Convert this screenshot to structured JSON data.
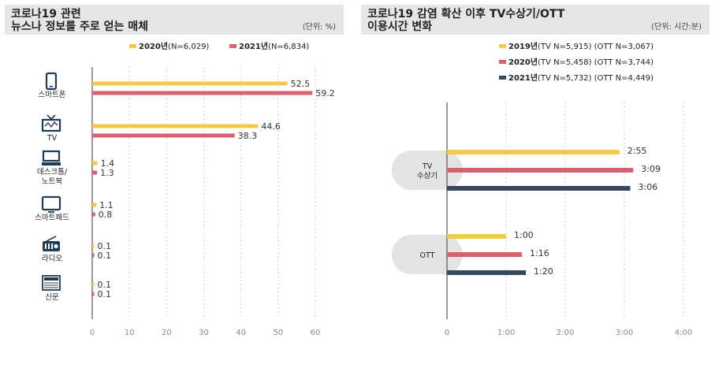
{
  "chart_data": [
    {
      "type": "bar",
      "title": "코로나19 관련\n뉴스나 정보를 주로 얻는 매체",
      "title_lines": [
        "코로나19 관련",
        "뉴스나 정보를 주로 얻는 매체"
      ],
      "unit": "(단위: %)",
      "categories": [
        "스마트폰",
        "TV",
        "데스크톱/노트북",
        "스마트패드",
        "라디오",
        "신문"
      ],
      "category_lines": [
        [
          "스마트폰"
        ],
        [
          "TV"
        ],
        [
          "데스크톱/",
          "노트북"
        ],
        [
          "스마트패드"
        ],
        [
          "라디오"
        ],
        [
          "신문"
        ]
      ],
      "series": [
        {
          "name": "2020년",
          "note": "(N=6,029)",
          "color": "#f2c94c",
          "values": [
            52.5,
            44.6,
            1.4,
            1.1,
            0.1,
            0.1
          ],
          "labels": [
            "52.5",
            "44.6",
            "1.4",
            "1.1",
            "0.1",
            "0.1"
          ]
        },
        {
          "name": "2021년",
          "note": "(N=6,834)",
          "color": "#d9606e",
          "values": [
            59.2,
            38.3,
            1.3,
            0.8,
            0.1,
            0.1
          ],
          "labels": [
            "59.2",
            "38.3",
            "1.3",
            "0.8",
            "0.1",
            "0.1"
          ]
        }
      ],
      "xlim": [
        0,
        60
      ],
      "xticks": [
        0,
        10,
        20,
        30,
        40,
        50,
        60
      ],
      "xtick_labels": [
        "0",
        "10",
        "20",
        "30",
        "40",
        "50",
        "60"
      ],
      "grid": true,
      "legend": "top-right"
    },
    {
      "type": "bar",
      "title": "코로나19 감염 확산 이후 TV수상기/OTT\n이용시간 변화",
      "title_lines": [
        "코로나19 감염 확산 이후 TV수상기/OTT",
        "이용시간 변화"
      ],
      "unit": "(단위: 시간:분)",
      "categories": [
        "TV 수상기",
        "OTT"
      ],
      "category_lines": [
        [
          "TV",
          "수상기"
        ],
        [
          "OTT"
        ]
      ],
      "series": [
        {
          "name": "2019년",
          "note": "(TV N=5,915) (OTT N=3,067)",
          "color": "#f2c94c",
          "values_minutes": [
            175,
            60
          ],
          "labels": [
            "2:55",
            "1:00"
          ]
        },
        {
          "name": "2020년",
          "note": "(TV N=5,458) (OTT N=3,744)",
          "color": "#d9606e",
          "values_minutes": [
            189,
            76
          ],
          "labels": [
            "3:09",
            "1:16"
          ]
        },
        {
          "name": "2021년",
          "note": "(TV N=5,732) (OTT N=4,449)",
          "color": "#34495e",
          "values_minutes": [
            186,
            80
          ],
          "labels": [
            "3:06",
            "1:20"
          ]
        }
      ],
      "xlim_minutes": [
        0,
        240
      ],
      "xticks_minutes": [
        0,
        60,
        120,
        180,
        240
      ],
      "xtick_labels": [
        "0",
        "1:00",
        "2:00",
        "3:00",
        "4:00"
      ],
      "grid": true,
      "legend": "top-right"
    }
  ]
}
